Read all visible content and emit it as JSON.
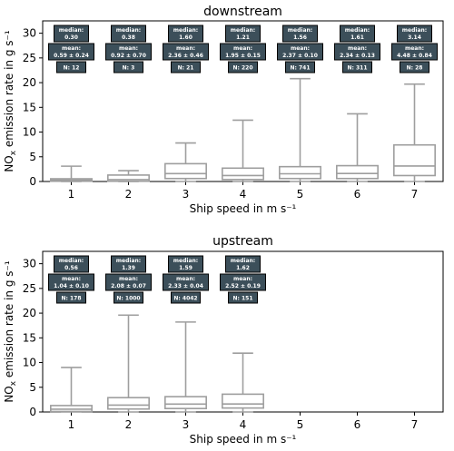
{
  "chart_data": [
    {
      "type": "box",
      "title": "downstream",
      "xlabel": "Ship speed in m s⁻¹",
      "ylabel_main": "NO",
      "ylabel_sub": "x",
      "ylabel_rest": " emission rate in g s⁻¹",
      "categories": [
        "1",
        "2",
        "3",
        "4",
        "5",
        "6",
        "7"
      ],
      "ylim": [
        0,
        32.5
      ],
      "yticks": [
        "0",
        "5",
        "10",
        "15",
        "20",
        "25",
        "30"
      ],
      "stat_labels": {
        "median": "median:",
        "mean": "mean:"
      },
      "boxes": [
        {
          "q1": 0.05,
          "median": 0.3,
          "q3": 0.55,
          "whisker_low": 0.0,
          "whisker_high": 3.1
        },
        {
          "q1": 0.05,
          "median": 0.38,
          "q3": 1.3,
          "whisker_low": 0.0,
          "whisker_high": 2.2
        },
        {
          "q1": 0.6,
          "median": 1.6,
          "q3": 3.6,
          "whisker_low": 0.0,
          "whisker_high": 7.8
        },
        {
          "q1": 0.4,
          "median": 1.21,
          "q3": 2.7,
          "whisker_low": 0.0,
          "whisker_high": 12.4
        },
        {
          "q1": 0.6,
          "median": 1.56,
          "q3": 3.0,
          "whisker_low": 0.0,
          "whisker_high": 20.8
        },
        {
          "q1": 0.6,
          "median": 1.61,
          "q3": 3.2,
          "whisker_low": 0.0,
          "whisker_high": 13.7
        },
        {
          "q1": 1.2,
          "median": 3.14,
          "q3": 7.4,
          "whisker_low": 0.0,
          "whisker_high": 19.7
        }
      ],
      "annotations": [
        {
          "median": "0.30",
          "mean": "0.59 ± 0.24",
          "n": "N: 12"
        },
        {
          "median": "0.38",
          "mean": "0.92 ± 0.70",
          "n": "N: 3"
        },
        {
          "median": "1.60",
          "mean": "2.36 ± 0.46",
          "n": "N: 21"
        },
        {
          "median": "1.21",
          "mean": "1.95 ± 0.15",
          "n": "N: 220"
        },
        {
          "median": "1.56",
          "mean": "2.37 ± 0.10",
          "n": "N: 741"
        },
        {
          "median": "1.61",
          "mean": "2.34 ± 0.13",
          "n": "N: 311"
        },
        {
          "median": "3.14",
          "mean": "4.48 ± 0.84",
          "n": "N: 28"
        }
      ]
    },
    {
      "type": "box",
      "title": "upstream",
      "xlabel": "Ship speed in m s⁻¹",
      "ylabel_main": "NO",
      "ylabel_sub": "x",
      "ylabel_rest": " emission rate in g s⁻¹",
      "categories": [
        "1",
        "2",
        "3",
        "4",
        "5",
        "6",
        "7"
      ],
      "ylim": [
        0,
        32.5
      ],
      "yticks": [
        "0",
        "5",
        "10",
        "15",
        "20",
        "25",
        "30"
      ],
      "stat_labels": {
        "median": "median:",
        "mean": "mean:"
      },
      "boxes": [
        {
          "q1": 0.1,
          "median": 0.56,
          "q3": 1.3,
          "whisker_low": 0.0,
          "whisker_high": 9.0
        },
        {
          "q1": 0.6,
          "median": 1.39,
          "q3": 2.9,
          "whisker_low": 0.0,
          "whisker_high": 19.6
        },
        {
          "q1": 0.7,
          "median": 1.59,
          "q3": 3.1,
          "whisker_low": 0.0,
          "whisker_high": 18.2
        },
        {
          "q1": 0.8,
          "median": 1.62,
          "q3": 3.6,
          "whisker_low": 0.0,
          "whisker_high": 11.9
        }
      ],
      "annotations": [
        {
          "median": "0.56",
          "mean": "1.04 ± 0.10",
          "n": "N: 178"
        },
        {
          "median": "1.39",
          "mean": "2.08 ± 0.07",
          "n": "N: 1000"
        },
        {
          "median": "1.59",
          "mean": "2.33 ± 0.04",
          "n": "N: 4042"
        },
        {
          "median": "1.62",
          "mean": "2.52 ± 0.19",
          "n": "N: 151"
        }
      ]
    }
  ],
  "colors": {
    "box_stroke": "#9e9e9e",
    "annotation_fill": "#3c4f5a",
    "annotation_border": "#000000",
    "axes": "#000000"
  }
}
